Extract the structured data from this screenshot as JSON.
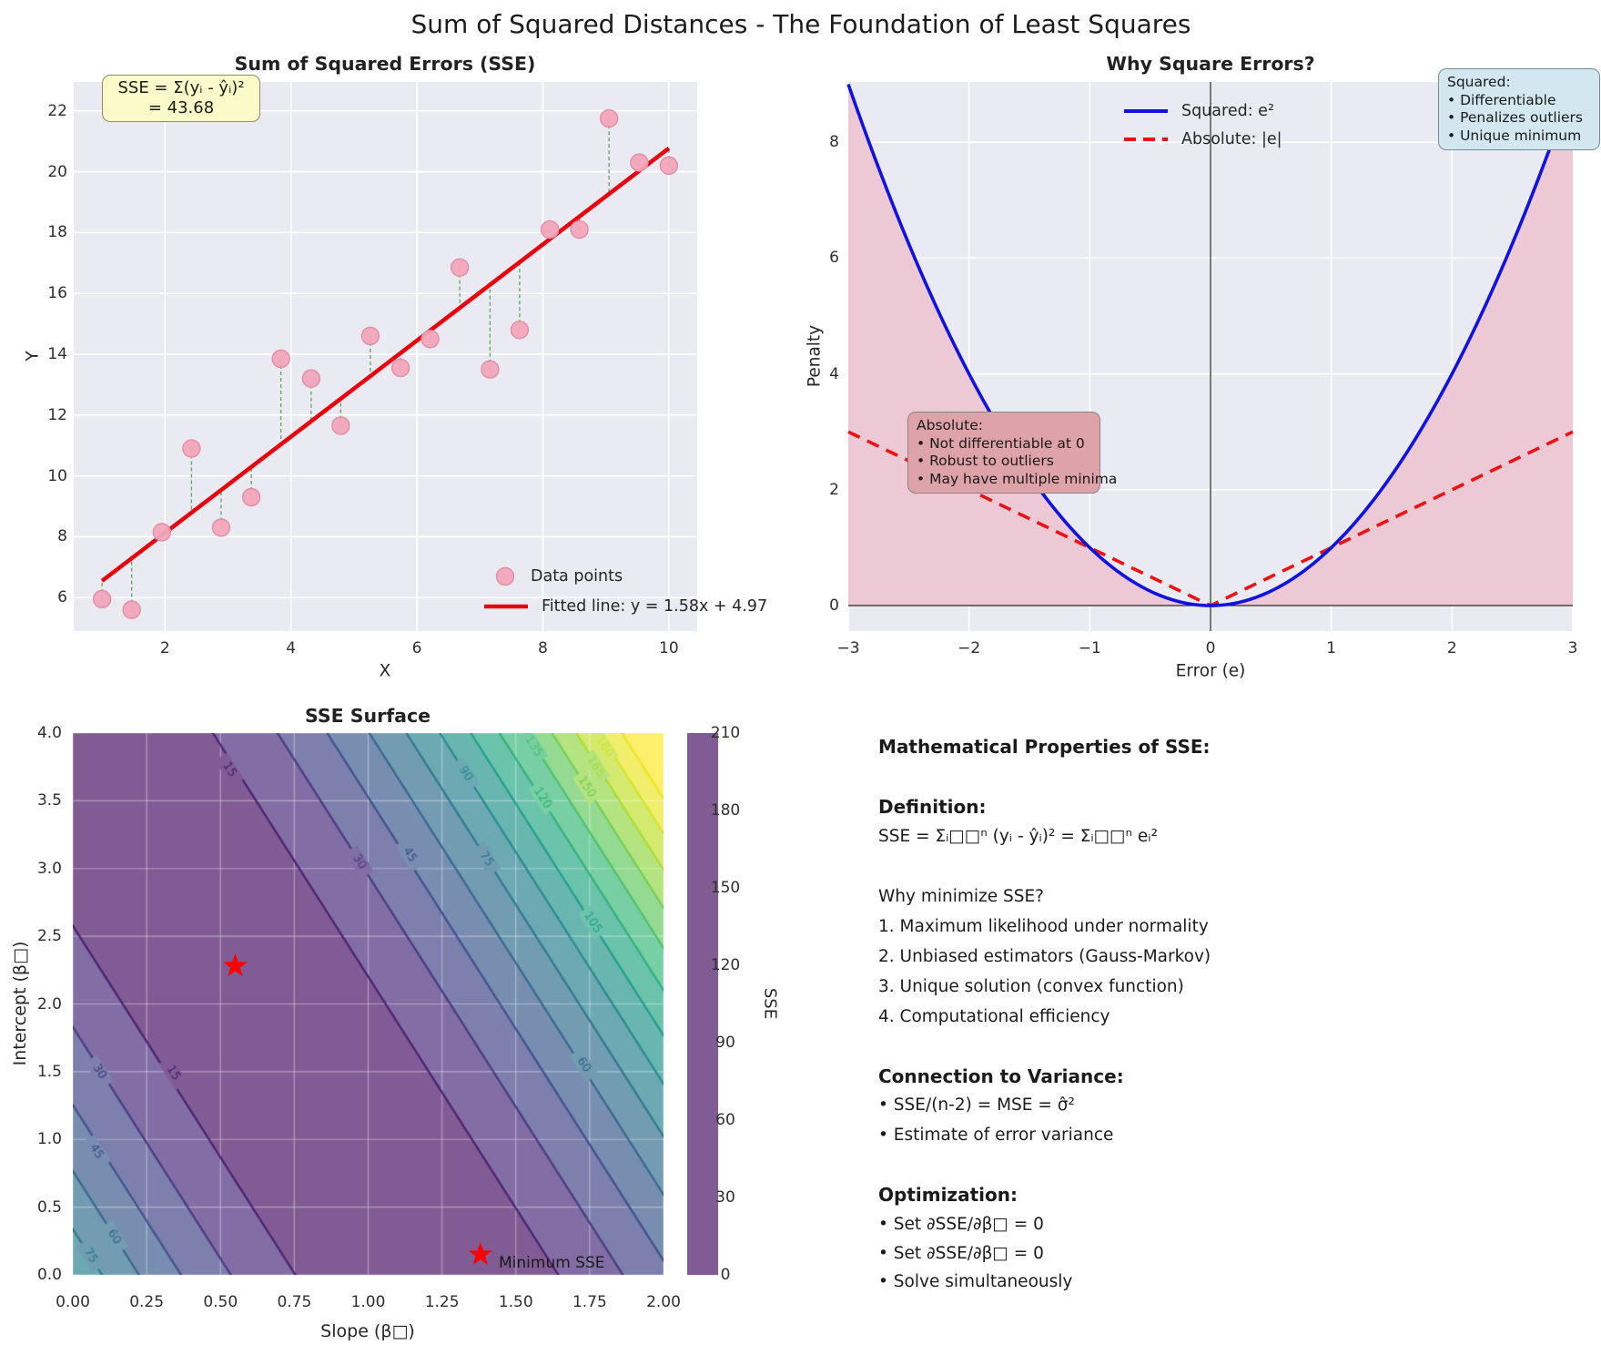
{
  "suptitle": "Sum of Squared Distances - The Foundation of Least Squares",
  "colors": {
    "plot_bg": "#eaeaf2",
    "grid": "#ffffff",
    "scatter_fill": "#f3a5ba",
    "scatter_edge": "#de8fa6",
    "fit_line": "#e8000b",
    "residual": "#2e8b2e",
    "squared_curve": "#1212e0",
    "absolute_curve": "#ee1111",
    "abs_fill": "#ecc9d4",
    "star": "#ff0000"
  },
  "chart_data": [
    {
      "type": "scatter",
      "title": "Sum of Squared Errors (SSE)",
      "xlabel": "X",
      "ylabel": "Y",
      "xlim": [
        0.55,
        10.45
      ],
      "ylim": [
        4.9,
        22.95
      ],
      "xticks": [
        2,
        4,
        6,
        8,
        10
      ],
      "yticks": [
        6,
        8,
        10,
        12,
        14,
        16,
        18,
        20,
        22
      ],
      "x": [
        1.0,
        1.47,
        1.95,
        2.42,
        2.89,
        3.37,
        3.84,
        4.32,
        4.79,
        5.26,
        5.74,
        6.21,
        6.68,
        7.16,
        7.63,
        8.11,
        8.58,
        9.05,
        9.53,
        10.0
      ],
      "y": [
        5.95,
        5.6,
        8.15,
        10.9,
        8.3,
        9.3,
        13.85,
        13.2,
        11.65,
        14.6,
        13.55,
        14.5,
        16.85,
        13.5,
        14.8,
        18.1,
        18.1,
        21.75,
        20.3,
        20.2
      ],
      "fit": {
        "slope": 1.58,
        "intercept": 4.97,
        "x_start": 1.0,
        "x_end": 10.0
      },
      "sse_value": 43.68,
      "annotation_lines": [
        "SSE = Σ(yᵢ - ŷᵢ)²",
        "= 43.68"
      ],
      "legend": {
        "points_label": "Data points",
        "line_label": "Fitted line: y = 1.58x + 4.97"
      }
    },
    {
      "type": "line",
      "title": "Why Square Errors?",
      "xlabel": "Error (e)",
      "ylabel": "Penalty",
      "xlim": [
        -3,
        3
      ],
      "ylim": [
        -0.44,
        9.04
      ],
      "xticks": [
        "−3",
        "−2",
        "−1",
        "0",
        "1",
        "2",
        "3"
      ],
      "xtick_vals": [
        -3,
        -2,
        -1,
        0,
        1,
        2,
        3
      ],
      "yticks": [
        0,
        2,
        4,
        6,
        8
      ],
      "series": [
        {
          "name": "Squared: e²",
          "fn": "square",
          "style": "solid"
        },
        {
          "name": "Absolute: |e|",
          "fn": "abs",
          "style": "dashed"
        }
      ],
      "fill_under_squared": true,
      "annotations": [
        {
          "title": "Squared:",
          "lines": [
            "• Differentiable",
            "• Penalizes outliers",
            "• Unique minimum"
          ],
          "bg": "lightblue"
        },
        {
          "title": "Absolute:",
          "lines": [
            "• Not differentiable at 0",
            "• Robust to outliers",
            "• May have multiple minima"
          ],
          "bg": "lightcoral"
        }
      ]
    },
    {
      "type": "contour",
      "title": "SSE Surface",
      "xlabel": "Slope (β□)",
      "ylabel": "Intercept (β□)",
      "xlim": [
        0,
        2
      ],
      "ylim": [
        0,
        4
      ],
      "xticks": [
        "0.00",
        "0.25",
        "0.50",
        "0.75",
        "1.00",
        "1.25",
        "1.50",
        "1.75",
        "2.00"
      ],
      "xtick_vals": [
        0,
        0.25,
        0.5,
        0.75,
        1.0,
        1.25,
        1.5,
        1.75,
        2.0
      ],
      "yticks": [
        "0.0",
        "0.5",
        "1.0",
        "1.5",
        "2.0",
        "2.5",
        "3.0",
        "3.5",
        "4.0"
      ],
      "ytick_vals": [
        0,
        0.5,
        1.0,
        1.5,
        2.0,
        2.5,
        3.0,
        3.5,
        4.0
      ],
      "level_step": 15,
      "level_max": 210,
      "surface_model": {
        "u_slope_coeff": 3.42,
        "u_intercept_coeff": 1,
        "u_offset": -4.1,
        "f_quad": 4.5,
        "f_lin": 3
      },
      "band_colors": [
        "#815C94",
        "#826EA4",
        "#7D7FAC",
        "#788EB1",
        "#729CB2",
        "#6CA9B2",
        "#69B6B0",
        "#6CC3AB",
        "#77CFA3",
        "#94DA93",
        "#B4E37F",
        "#D4EA6F",
        "#F0EE6B",
        "#FEEF6B"
      ],
      "line_colors": {
        "15": "#471D6E",
        "30": "#44377F",
        "45": "#3C4E8A",
        "60": "#33648D",
        "75": "#2B778E",
        "90": "#248A8D",
        "105": "#1F9E89",
        "120": "#2FB07C",
        "135": "#4DC16B",
        "150": "#72CF55",
        "165": "#AADC32",
        "180": "#D4E328",
        "195": "#ECE51E"
      },
      "contour_labels": [
        {
          "v": 15,
          "m": 0.53,
          "b": 3.73
        },
        {
          "v": 15,
          "m": 0.34,
          "b": 1.49
        },
        {
          "v": 30,
          "m": 0.97,
          "b": 3.05
        },
        {
          "v": 30,
          "m": 0.09,
          "b": 1.5
        },
        {
          "v": 45,
          "m": 1.14,
          "b": 3.1
        },
        {
          "v": 45,
          "m": 0.08,
          "b": 0.91
        },
        {
          "v": 60,
          "m": 1.73,
          "b": 1.55
        },
        {
          "v": 60,
          "m": 0.14,
          "b": 0.28
        },
        {
          "v": 75,
          "m": 1.4,
          "b": 3.07
        },
        {
          "v": 75,
          "m": 0.06,
          "b": 0.14
        },
        {
          "v": 90,
          "m": 1.33,
          "b": 3.7
        },
        {
          "v": 105,
          "m": 1.76,
          "b": 2.6
        },
        {
          "v": 120,
          "m": 1.59,
          "b": 3.52
        },
        {
          "v": 135,
          "m": 1.56,
          "b": 3.9
        },
        {
          "v": 150,
          "m": 1.74,
          "b": 3.6
        },
        {
          "v": 165,
          "m": 1.77,
          "b": 3.75
        },
        {
          "v": 180,
          "m": 1.8,
          "b": 3.9
        }
      ],
      "stars": [
        {
          "m": 0.55,
          "b": 2.28,
          "label": ""
        },
        {
          "m": 1.38,
          "b": 0.15,
          "label": "Minimum SSE"
        }
      ],
      "colorbar": {
        "ticks": [
          "0",
          "30",
          "60",
          "90",
          "120",
          "150",
          "180",
          "210"
        ],
        "tick_vals": [
          0,
          30,
          60,
          90,
          120,
          150,
          180,
          210
        ],
        "label": "SSE"
      }
    }
  ],
  "panel": {
    "lines": [
      {
        "text": "Mathematical Properties of SSE:",
        "style": "h"
      },
      {
        "text": "Definition:",
        "style": "h"
      },
      {
        "text": "SSE = Σᵢ□□ⁿ (yᵢ - ŷᵢ)² = Σᵢ□□ⁿ eᵢ²",
        "style": "b"
      },
      {
        "text": "Why minimize SSE?",
        "style": "b"
      },
      {
        "text": "1. Maximum likelihood under normality",
        "style": "b"
      },
      {
        "text": "2. Unbiased estimators (Gauss-Markov)",
        "style": "b"
      },
      {
        "text": "3. Unique solution (convex function)",
        "style": "b"
      },
      {
        "text": "4. Computational efficiency",
        "style": "b"
      },
      {
        "text": "Connection to Variance:",
        "style": "h"
      },
      {
        "text": "• SSE/(n-2) = MSE = σ̂²",
        "style": "b"
      },
      {
        "text": "• Estimate of error variance",
        "style": "b"
      },
      {
        "text": "Optimization:",
        "style": "h"
      },
      {
        "text": "• Set ∂SSE/∂β□ = 0",
        "style": "b"
      },
      {
        "text": "• Set ∂SSE/∂β□ = 0",
        "style": "b"
      },
      {
        "text": "• Solve simultaneously",
        "style": "b"
      }
    ]
  }
}
